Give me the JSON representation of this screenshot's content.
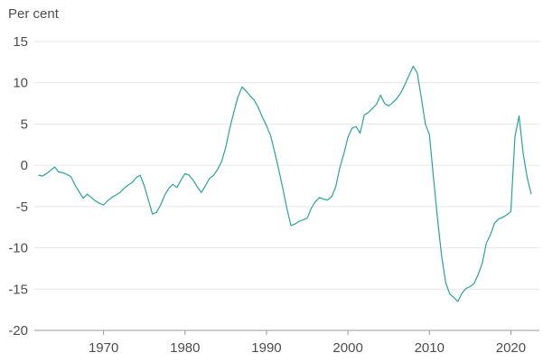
{
  "chart_data": {
    "type": "line",
    "title": "",
    "ylabel": "Per cent",
    "xlabel": "",
    "xlim": [
      1961.5,
      2023.5
    ],
    "ylim": [
      -20,
      15
    ],
    "y_ticks": [
      15,
      10,
      5,
      0,
      -5,
      -10,
      -15,
      -20
    ],
    "x_ticks": [
      1970,
      1980,
      1990,
      2000,
      2010,
      2020
    ],
    "grid": true,
    "line_color": "#2aa39b",
    "series": [
      {
        "x": [
          1962,
          1962.5,
          1963,
          1963.5,
          1964,
          1964.5,
          1965,
          1965.5,
          1966,
          1966.5,
          1967,
          1967.5,
          1968,
          1968.5,
          1969,
          1969.5,
          1970,
          1970.5,
          1971,
          1971.5,
          1972,
          1972.5,
          1973,
          1973.5,
          1974,
          1974.5,
          1975,
          1975.5,
          1976,
          1976.5,
          1977,
          1977.5,
          1978,
          1978.5,
          1979,
          1979.5,
          1980,
          1980.5,
          1981,
          1981.5,
          1982,
          1982.5,
          1983,
          1983.5,
          1984,
          1984.5,
          1985,
          1985.5,
          1986,
          1986.5,
          1987,
          1987.5,
          1988,
          1988.5,
          1989,
          1989.5,
          1990,
          1990.5,
          1991,
          1991.5,
          1992,
          1992.5,
          1993,
          1993.5,
          1994,
          1994.5,
          1995,
          1995.5,
          1996,
          1996.5,
          1997,
          1997.5,
          1998,
          1998.5,
          1999,
          1999.5,
          2000,
          2000.5,
          2001,
          2001.5,
          2002,
          2002.5,
          2003,
          2003.5,
          2004,
          2004.5,
          2005,
          2005.5,
          2006,
          2006.5,
          2007,
          2007.5,
          2008,
          2008.5,
          2009,
          2009.5,
          2010,
          2010.5,
          2011,
          2011.5,
          2012,
          2012.5,
          2013,
          2013.5,
          2014,
          2014.5,
          2015,
          2015.5,
          2016,
          2016.5,
          2017,
          2017.5,
          2018,
          2018.5,
          2019,
          2019.5,
          2020,
          2020.5,
          2021,
          2021.5,
          2022,
          2022.5
        ],
        "values": [
          -1.2,
          -1.3,
          -1.0,
          -0.6,
          -0.2,
          -0.8,
          -0.9,
          -1.1,
          -1.4,
          -2.4,
          -3.2,
          -4.0,
          -3.5,
          -3.9,
          -4.3,
          -4.6,
          -4.8,
          -4.3,
          -3.9,
          -3.6,
          -3.3,
          -2.8,
          -2.4,
          -2.1,
          -1.5,
          -1.2,
          -2.5,
          -4.2,
          -5.9,
          -5.7,
          -4.8,
          -3.6,
          -2.8,
          -2.3,
          -2.7,
          -1.8,
          -1.0,
          -1.2,
          -1.8,
          -2.6,
          -3.3,
          -2.5,
          -1.6,
          -1.2,
          -0.5,
          0.5,
          2.2,
          4.5,
          6.5,
          8.3,
          9.5,
          9.0,
          8.4,
          7.9,
          7.0,
          5.8,
          4.8,
          3.6,
          1.6,
          -0.5,
          -2.8,
          -5.2,
          -7.3,
          -7.1,
          -6.8,
          -6.6,
          -6.4,
          -5.2,
          -4.4,
          -3.9,
          -4.1,
          -4.2,
          -3.8,
          -2.6,
          -0.3,
          1.4,
          3.4,
          4.5,
          4.7,
          3.9,
          6.1,
          6.4,
          6.9,
          7.4,
          8.5,
          7.5,
          7.2,
          7.6,
          8.1,
          8.8,
          9.8,
          10.9,
          12.0,
          11.2,
          8.2,
          5.0,
          3.7,
          -1.5,
          -6.5,
          -11.0,
          -14.2,
          -15.6,
          -16.0,
          -16.5,
          -15.5,
          -14.9,
          -14.7,
          -14.3,
          -13.2,
          -11.8,
          -9.4,
          -8.4,
          -7.0,
          -6.5,
          -6.3,
          -6.0,
          -5.6,
          3.5,
          6.0,
          1.5,
          -1.5,
          -3.5
        ]
      }
    ]
  }
}
